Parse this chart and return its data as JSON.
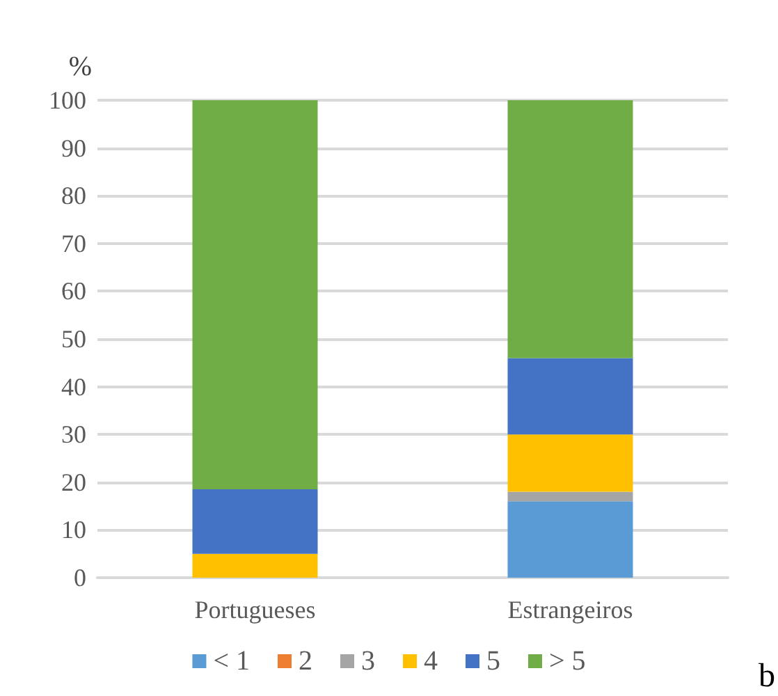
{
  "chart_data": {
    "type": "bar",
    "stacked": true,
    "ylabel": "%",
    "categories": [
      "Portugueses",
      "Estrangeiros"
    ],
    "series": [
      {
        "name": "< 1",
        "color": "#5b9bd5",
        "values": [
          0,
          16
        ]
      },
      {
        "name": "2",
        "color": "#ed7d31",
        "values": [
          0,
          0
        ]
      },
      {
        "name": "3",
        "color": "#a5a5a5",
        "values": [
          0,
          2
        ]
      },
      {
        "name": "4",
        "color": "#ffc000",
        "values": [
          5,
          12
        ]
      },
      {
        "name": "5",
        "color": "#4472c4",
        "values": [
          13.5,
          16
        ]
      },
      {
        "name": "> 5",
        "color": "#70ad47",
        "values": [
          81.5,
          54
        ]
      }
    ],
    "ylim": [
      0,
      100
    ],
    "yticks": [
      0,
      10,
      20,
      30,
      40,
      50,
      60,
      70,
      80,
      90,
      100
    ],
    "grid": "y",
    "legend": "bottom",
    "annotations": [
      "b"
    ]
  }
}
